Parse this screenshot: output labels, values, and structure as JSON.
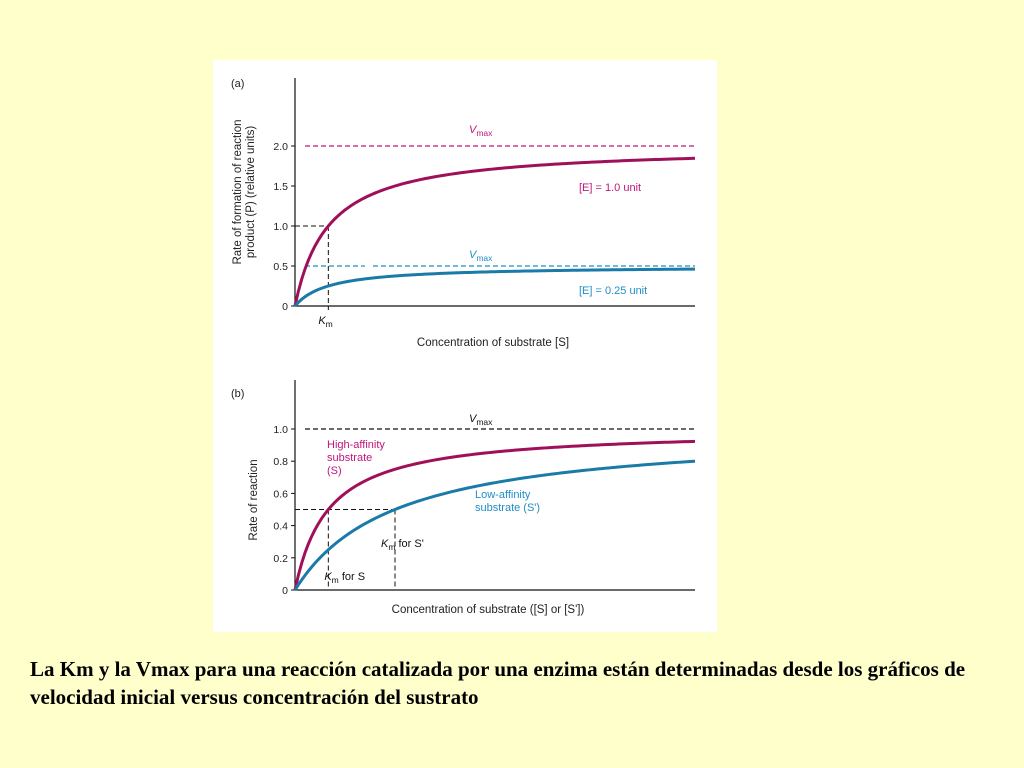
{
  "colors": {
    "background": "#ffffcc",
    "panel": "#ffffff",
    "magenta": "#a0105a",
    "magenta_label": "#c0157a",
    "blue": "#1a7aa8",
    "blue_label": "#1f8fc4",
    "black": "#111111"
  },
  "caption": "La Km y la Vmax para una reacción catalizada por una enzima están determinadas desde  los gráficos de velocidad inicial versus concentración del sustrato",
  "chart_data": [
    {
      "id": "a",
      "type": "line",
      "panel_label": "(a)",
      "title": "",
      "xlabel": "Concentration of substrate [S]",
      "ylabel_lines": [
        "Rate of formation of reaction",
        "product (P) (relative units)"
      ],
      "ylim": [
        0,
        2.0
      ],
      "yticks": [
        "0",
        "0.5",
        "1.0",
        "1.5",
        "2.0"
      ],
      "x_ticks": [
        "K_m"
      ],
      "km_label": "K",
      "km_sub": "m",
      "vmax_label": "V",
      "vmax_sub": "max",
      "km": 1,
      "series": [
        {
          "name": "[E] = 1.0 unit",
          "vmax": 2.0,
          "km": 1
        },
        {
          "name": "[E] = 0.25 unit",
          "vmax": 0.5,
          "km": 1
        }
      ],
      "grid": false
    },
    {
      "id": "b",
      "type": "line",
      "panel_label": "(b)",
      "title": "",
      "xlabel": "Concentration of substrate ([S] or [S'])",
      "ylabel": "Rate of reaction",
      "ylim": [
        0,
        1.0
      ],
      "yticks": [
        "0",
        "0.2",
        "0.4",
        "0.6",
        "0.8",
        "1.0"
      ],
      "vmax_label": "V",
      "vmax_sub": "max",
      "series": [
        {
          "name": "High-affinity substrate (S)",
          "label_lines": [
            "High-affinity",
            "substrate",
            "(S)"
          ],
          "vmax": 1.0,
          "km": 1
        },
        {
          "name": "Low-affinity substrate (S')",
          "label_lines": [
            "Low-affinity",
            "substrate (S')"
          ],
          "vmax": 1.0,
          "km": 3
        }
      ],
      "km_labels": [
        {
          "main": "K",
          "sub": "m",
          "rest": " for S"
        },
        {
          "main": "K",
          "sub": "m",
          "rest": " for S'"
        }
      ],
      "grid": false
    }
  ]
}
